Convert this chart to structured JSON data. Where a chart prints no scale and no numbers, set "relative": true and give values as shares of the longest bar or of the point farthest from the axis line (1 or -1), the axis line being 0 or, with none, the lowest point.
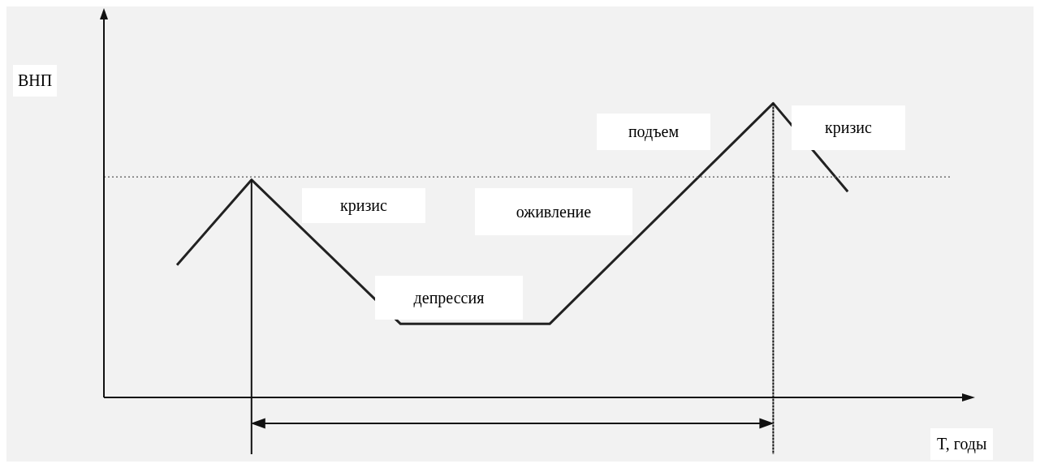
{
  "chart_data": {
    "type": "line",
    "relative": true,
    "xlabel": "T, годы",
    "ylabel": "ВНП",
    "categories": [
      null,
      null,
      null,
      null,
      null,
      null,
      null,
      null,
      null,
      null,
      null
    ],
    "series": [
      {
        "color": "#222222",
        "values": [
          0.45,
          0.74,
          null,
          0.25,
          null,
          0.25,
          null,
          null,
          1,
          0.7,
          null
        ]
      }
    ],
    "ref_lines": [
      {
        "axis": "y",
        "value": 0.75,
        "line_style": "dotted",
        "color": "#555555"
      }
    ],
    "annotations": [
      "кризис",
      "оживление",
      "депрессия",
      "подъем",
      "кризис"
    ],
    "grid": false,
    "legend": false
  }
}
